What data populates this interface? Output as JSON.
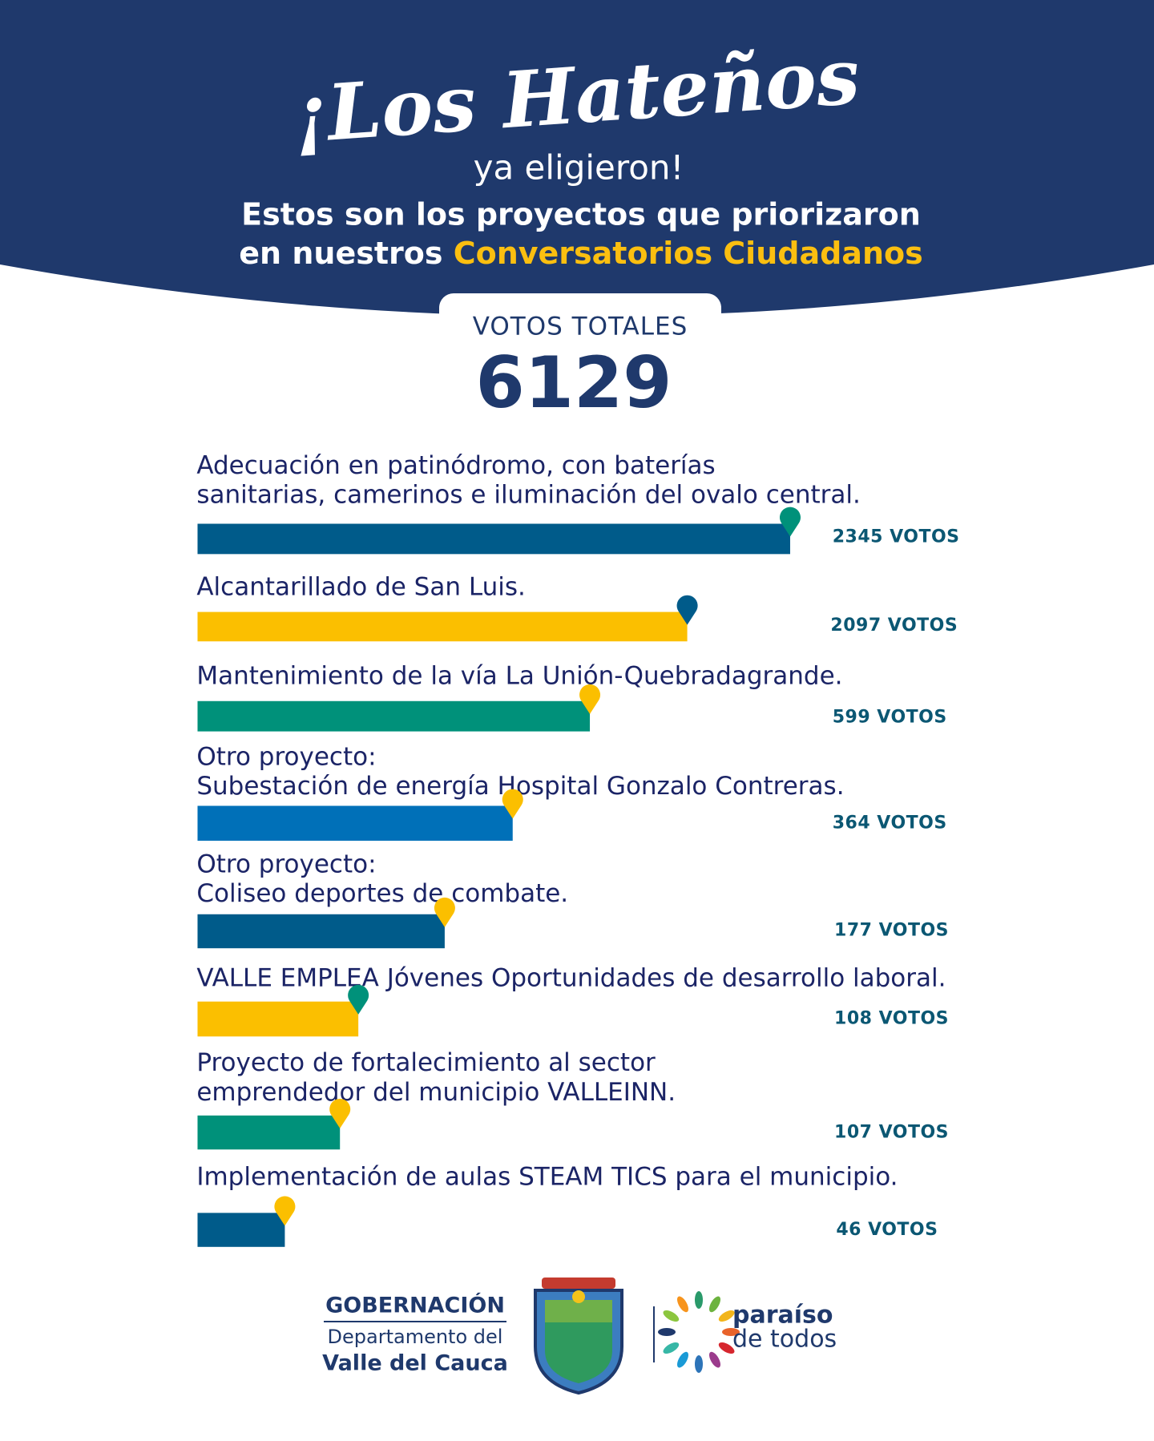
{
  "header": {
    "title": "¡Los Hateños",
    "subtitle": "ya eligieron!",
    "intro": "Estos son los proyectos que priorizaron",
    "intro_prefix": "en nuestros ",
    "intro_highlight": "Conversatorios Ciudadanos"
  },
  "total": {
    "label": "VOTOS TOTALES",
    "value": 6129
  },
  "items": [
    {
      "lines": [
        "Adecuación en patinódromo, con baterías",
        "sanitarias, camerinos e iluminación del ovalo central."
      ],
      "votes": "2345 VOTOS"
    },
    {
      "lines": [
        "Alcantarillado de San Luis."
      ],
      "votes": "2097 VOTOS"
    },
    {
      "lines": [
        "Mantenimiento de la vía La Unión-Quebradagrande."
      ],
      "votes": "599 VOTOS"
    },
    {
      "lines": [
        "Otro proyecto:",
        "Subestación de energía Hospital Gonzalo Contreras."
      ],
      "votes": "364 VOTOS"
    },
    {
      "lines": [
        "Otro proyecto:",
        "Coliseo deportes de combate."
      ],
      "votes": "177 VOTOS"
    },
    {
      "lines": [
        "VALLE EMPLEA Jóvenes Oportunidades de desarrollo laboral."
      ],
      "votes": "108 VOTOS"
    },
    {
      "lines": [
        "Proyecto de fortalecimiento al sector",
        "emprendedor del municipio VALLEINN."
      ],
      "votes": "107 VOTOS"
    },
    {
      "lines": [
        "Implementación de aulas STEAM TICS para el municipio."
      ],
      "votes": "46 VOTOS"
    }
  ],
  "footer": {
    "org": "GOBERNACIÓN",
    "dept": "Departamento del",
    "region": "Valle del Cauca",
    "brand1": "paraíso",
    "brand2": "de todos"
  }
}
